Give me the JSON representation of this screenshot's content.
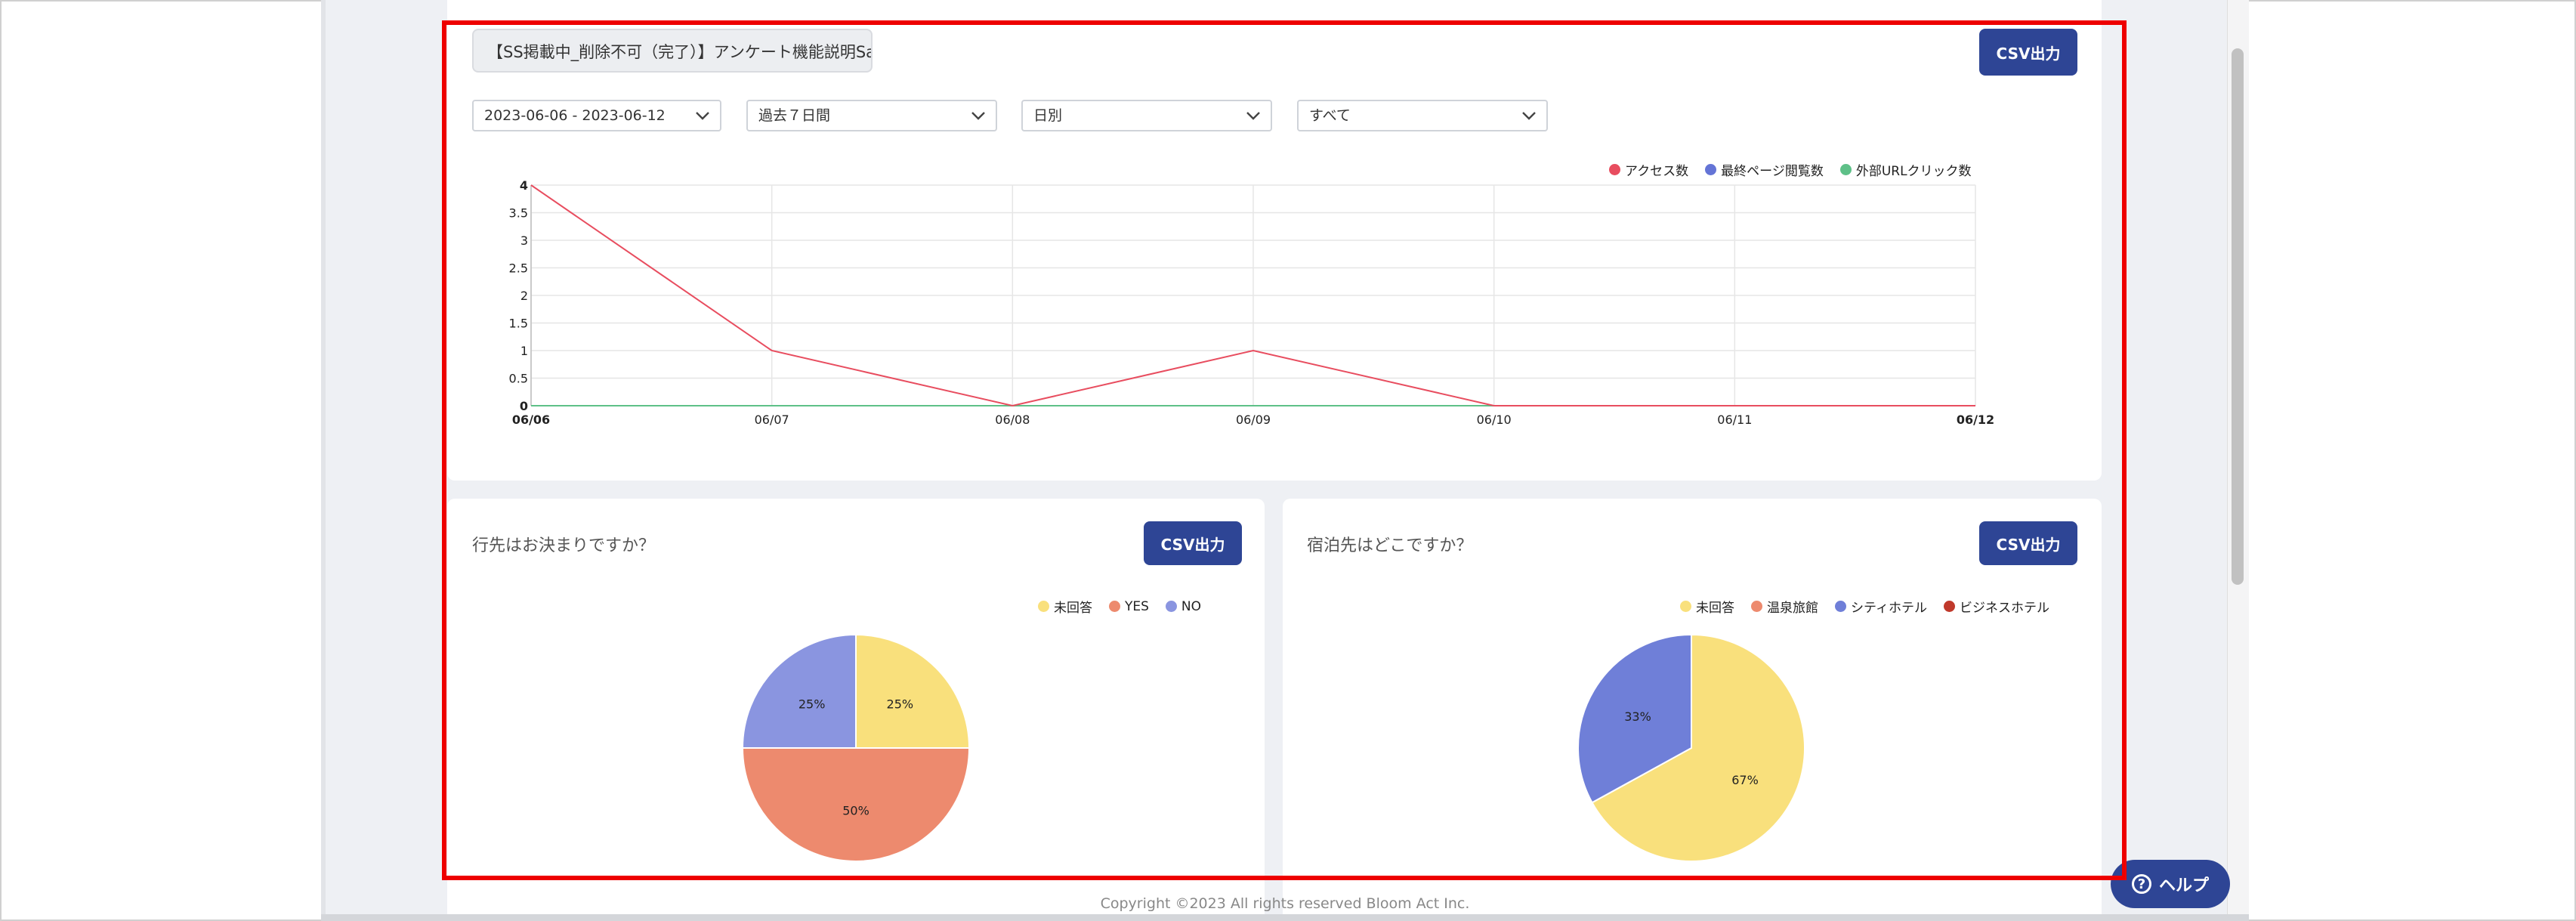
{
  "summary": {
    "title": "【SS掲載中_削除不可（完了）】アンケート機能説明Sampl",
    "csv_label": "CSV出力",
    "filters": {
      "date_range": "2023-06-06 - 2023-06-12",
      "period": "過去７日間",
      "granularity": "日別",
      "scope": "すべて"
    }
  },
  "colors": {
    "primary": "#2e4595",
    "access": "#e84d5f",
    "last_page": "#6474d6",
    "external_url": "#5ec088",
    "unanswered": "#f9e07c",
    "yes": "#ed8a6e",
    "no": "#8a95e0",
    "hot_spring": "#ed8a6e",
    "city_hotel": "#6f7fd8",
    "business_hotel": "#c0392b"
  },
  "chart_data": [
    {
      "type": "line",
      "x": [
        "06/06",
        "06/07",
        "06/08",
        "06/09",
        "06/10",
        "06/11",
        "06/12"
      ],
      "series": [
        {
          "name": "アクセス数",
          "values": [
            4,
            1,
            0,
            1,
            0,
            0,
            0
          ]
        },
        {
          "name": "最終ページ閲覧数",
          "values": [
            0,
            0,
            0,
            0,
            0,
            0,
            0
          ]
        },
        {
          "name": "外部URLクリック数",
          "values": [
            0,
            0,
            0,
            0,
            0,
            0,
            0
          ]
        }
      ],
      "yticks": [
        "0",
        "0.5",
        "1",
        "1.5",
        "2",
        "2.5",
        "3",
        "3.5",
        "4"
      ],
      "ylim": [
        0,
        4
      ],
      "grid": true,
      "legend": "top-right"
    },
    {
      "type": "pie",
      "title": "行先はお決まりですか？",
      "slices": [
        {
          "name": "未回答",
          "value": 25,
          "label": "25%"
        },
        {
          "name": "YES",
          "value": 50,
          "label": "50%"
        },
        {
          "name": "NO",
          "value": 25,
          "label": "25%"
        }
      ],
      "legend": "top-right"
    },
    {
      "type": "pie",
      "title": "宿泊先はどこですか？",
      "slices": [
        {
          "name": "未回答",
          "value": 67,
          "label": "67%"
        },
        {
          "name": "温泉旅館",
          "value": 0,
          "label": ""
        },
        {
          "name": "シティホテル",
          "value": 33,
          "label": "33%"
        },
        {
          "name": "ビジネスホテル",
          "value": 0,
          "label": ""
        }
      ],
      "legend": "top-right"
    }
  ],
  "help": {
    "label": "ヘルプ",
    "icon": "question-circle-icon",
    "glyph": "?"
  },
  "footer": {
    "copyright": "Copyright ©2023 All rights reserved Bloom Act Inc."
  }
}
